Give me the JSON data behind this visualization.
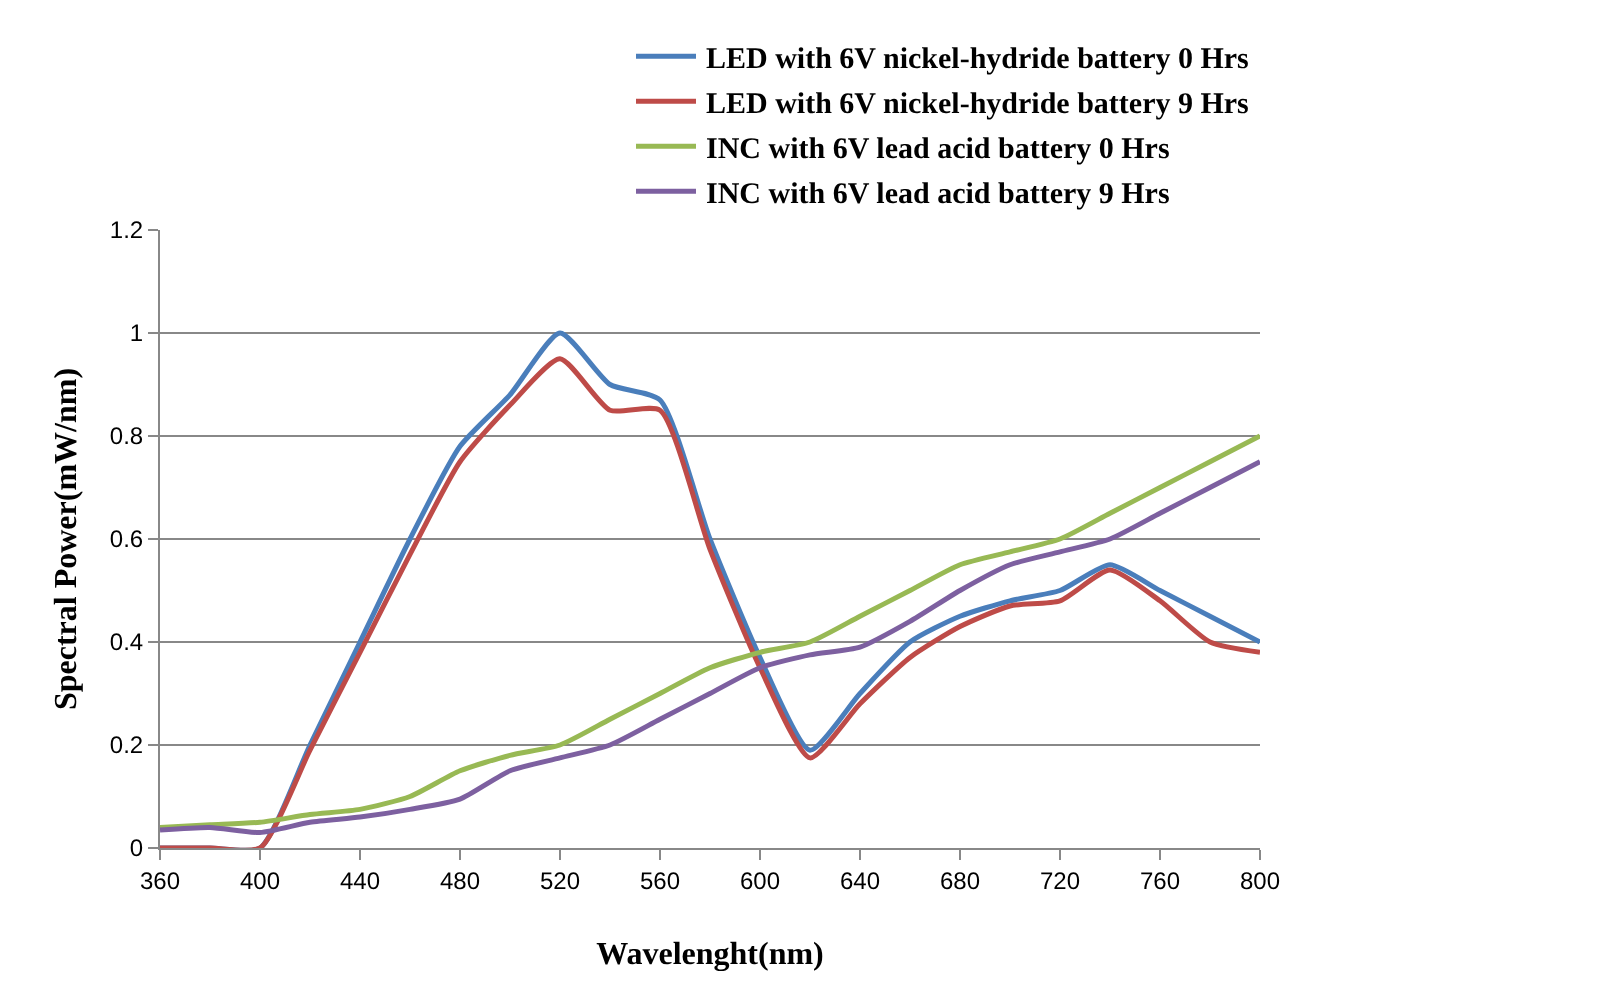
{
  "chart_data": {
    "type": "line",
    "xlabel": "Wavelenght(nm)",
    "ylabel": "Spectral Power(mW/nm)",
    "x": [
      360,
      380,
      400,
      420,
      440,
      460,
      480,
      500,
      520,
      540,
      560,
      580,
      600,
      620,
      640,
      660,
      680,
      700,
      720,
      740,
      760,
      780,
      800
    ],
    "series": [
      {
        "name": "LED with 6V nickel-hydride battery 0 Hrs",
        "color": "#4a7ebb",
        "values": [
          0,
          0,
          0,
          0.2,
          0.4,
          0.6,
          0.78,
          0.88,
          1.0,
          0.9,
          0.87,
          0.6,
          0.37,
          0.19,
          0.3,
          0.4,
          0.45,
          0.48,
          0.5,
          0.55,
          0.5,
          0.45,
          0.4
        ]
      },
      {
        "name": "LED with 6V nickel-hydride battery 9 Hrs",
        "color": "#be4b48",
        "values": [
          0,
          0,
          0,
          0.19,
          0.38,
          0.57,
          0.75,
          0.86,
          0.95,
          0.85,
          0.85,
          0.58,
          0.35,
          0.175,
          0.28,
          0.37,
          0.43,
          0.47,
          0.48,
          0.54,
          0.48,
          0.4,
          0.38
        ]
      },
      {
        "name": "INC with 6V lead acid battery 0 Hrs",
        "color": "#98b954",
        "values": [
          0.04,
          0.045,
          0.05,
          0.065,
          0.075,
          0.1,
          0.15,
          0.18,
          0.2,
          0.25,
          0.3,
          0.35,
          0.38,
          0.4,
          0.45,
          0.5,
          0.55,
          0.575,
          0.6,
          0.65,
          0.7,
          0.75,
          0.8
        ]
      },
      {
        "name": "INC with 6V lead acid battery 9 Hrs",
        "color": "#7d60a0",
        "values": [
          0.035,
          0.04,
          0.03,
          0.05,
          0.06,
          0.075,
          0.095,
          0.15,
          0.175,
          0.2,
          0.25,
          0.3,
          0.35,
          0.375,
          0.39,
          0.44,
          0.5,
          0.55,
          0.575,
          0.6,
          0.65,
          0.7,
          0.75
        ]
      }
    ],
    "xlim": [
      360,
      800
    ],
    "xticks": [
      360,
      400,
      440,
      480,
      520,
      560,
      600,
      640,
      680,
      720,
      760,
      800
    ],
    "ylim": [
      0,
      1.2
    ],
    "yticks": [
      0,
      0.2,
      0.4,
      0.6,
      0.8,
      1,
      1.2
    ],
    "grid": "y",
    "legend": "top right",
    "marker": "none",
    "line_style": "solid"
  }
}
